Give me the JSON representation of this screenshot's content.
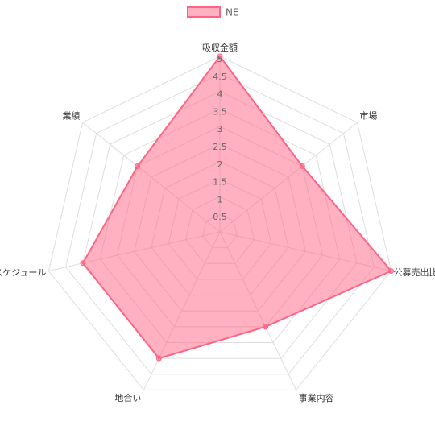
{
  "chart_data": {
    "type": "radar",
    "categories": [
      "吸収金額",
      "市場",
      "公募売出比",
      "事業内容",
      "地合い",
      "スケジュール",
      "業績"
    ],
    "series": [
      {
        "name": "NE",
        "color": "#ff6384",
        "values": [
          5,
          3,
          5,
          3,
          4,
          4,
          3
        ]
      }
    ],
    "rlim": [
      0,
      5
    ],
    "rticks": [
      0.5,
      1,
      1.5,
      2,
      2.5,
      3,
      3.5,
      4,
      4.5,
      5
    ],
    "grid": true,
    "legend": "top"
  }
}
